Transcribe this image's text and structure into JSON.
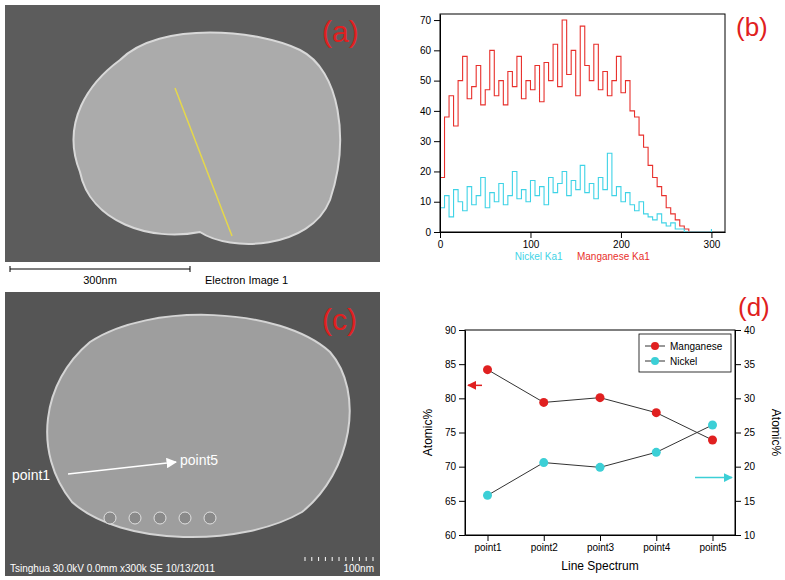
{
  "image_panels": [
    {
      "letter": "(a)",
      "scale_bar": "300nm",
      "caption": "Electron Image 1"
    },
    {
      "letter": "(c)",
      "caption": "Tsinghua 30.0kV 0.0mm x300k SE 10/13/2011",
      "scale_bar": "100nm",
      "labels": [
        "point1",
        "point5"
      ]
    }
  ],
  "chart_data": [
    {
      "type": "line",
      "panel": "(b)",
      "line_style": "steps",
      "x": [
        0,
        5,
        10,
        15,
        20,
        25,
        30,
        35,
        40,
        45,
        50,
        55,
        60,
        65,
        70,
        75,
        80,
        85,
        90,
        95,
        100,
        105,
        110,
        115,
        120,
        125,
        130,
        135,
        140,
        145,
        150,
        155,
        160,
        165,
        170,
        175,
        180,
        185,
        190,
        195,
        200,
        205,
        210,
        215,
        220,
        225,
        230,
        235,
        240,
        245,
        250,
        255,
        260,
        265,
        270,
        275,
        280,
        285,
        290,
        295,
        300
      ],
      "xlim": [
        0,
        315
      ],
      "xticks": [
        0,
        100,
        200,
        300
      ],
      "ylim": [
        0,
        72
      ],
      "yticks": [
        0,
        10,
        20,
        30,
        40,
        50,
        60,
        70
      ],
      "grid": false,
      "legend": "bottom",
      "series": [
        {
          "name": "Nickel Ka1",
          "color": "#3fd3e6",
          "values": [
            8,
            12,
            5,
            14,
            10,
            7,
            15,
            9,
            12,
            18,
            8,
            13,
            10,
            16,
            9,
            12,
            20,
            11,
            14,
            10,
            17,
            12,
            15,
            9,
            18,
            13,
            16,
            20,
            12,
            17,
            14,
            22,
            13,
            16,
            11,
            18,
            14,
            26,
            12,
            15,
            10,
            13,
            9,
            7,
            10,
            6,
            5,
            4,
            6,
            3,
            2,
            3,
            1,
            1,
            0,
            0,
            0,
            0,
            0,
            0,
            1
          ]
        },
        {
          "name": "Manganese Ka1",
          "color": "#e8302c",
          "values": [
            18,
            38,
            45,
            35,
            50,
            58,
            44,
            48,
            55,
            42,
            47,
            60,
            45,
            50,
            42,
            53,
            48,
            58,
            44,
            50,
            47,
            55,
            43,
            56,
            50,
            62,
            48,
            70,
            52,
            60,
            45,
            68,
            55,
            50,
            62,
            47,
            53,
            45,
            50,
            58,
            46,
            50,
            40,
            38,
            32,
            28,
            22,
            18,
            15,
            12,
            8,
            6,
            4,
            2,
            1,
            0,
            0,
            0,
            0,
            0,
            0
          ]
        }
      ]
    },
    {
      "type": "line",
      "panel": "(d)",
      "categories": [
        "point1",
        "point2",
        "point3",
        "point4",
        "point5"
      ],
      "x_label": "Line Spectrum",
      "y_label": "Atomic%",
      "y2_label": "Atomic%",
      "ylim": [
        60,
        90
      ],
      "yticks": [
        60,
        65,
        70,
        75,
        80,
        85,
        90
      ],
      "y2lim": [
        10,
        40
      ],
      "y2ticks": [
        10,
        15,
        20,
        25,
        30,
        35,
        40
      ],
      "grid": false,
      "legend": "upper right",
      "marker": "circle",
      "series": [
        {
          "name": "Manganese",
          "color": "#e02020",
          "values": [
            84.2,
            79.4,
            80.1,
            77.9,
            73.9
          ]
        },
        {
          "name": "Nickel",
          "color": "#3ccfd6",
          "axis": "y2",
          "values": [
            15.8,
            20.6,
            19.9,
            22.1,
            26.1
          ]
        }
      ]
    }
  ]
}
